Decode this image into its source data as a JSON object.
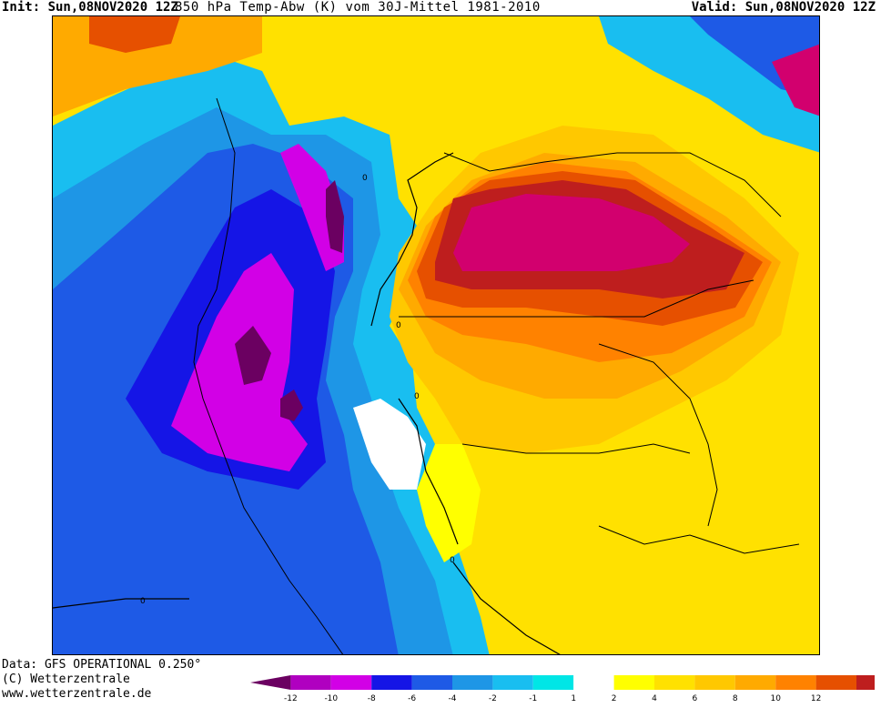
{
  "header": {
    "init": "Init: Sun,08NOV2020 12Z",
    "title": "850 hPa Temp-Abw (K) vom 30J-Mittel 1981-2010",
    "valid": "Valid: Sun,08NOV2020 12Z"
  },
  "footer": {
    "data_source": "Data: GFS OPERATIONAL 0.250°",
    "copyright": "(C) Wetterzentrale",
    "website": "www.wetterzentrale.de"
  },
  "map": {
    "variable": "850 hPa temperature anomaly (K)",
    "region": "North America",
    "contour_labels": [
      "0",
      "0",
      "0",
      "0",
      "0"
    ]
  },
  "colorbar": {
    "tick_labels": [
      "-12",
      "-10",
      "-8",
      "-6",
      "-4",
      "-2",
      "-1",
      "1",
      "2",
      "4",
      "6",
      "8",
      "10",
      "12"
    ],
    "colors": [
      "#6b0061",
      "#b000c0",
      "#d200e6",
      "#1515e6",
      "#1e5ae6",
      "#1e96e6",
      "#19bef0",
      "#00e6e6",
      "#ffffff",
      "#ffff00",
      "#ffe100",
      "#ffc800",
      "#ffaa00",
      "#ff8200",
      "#e65000",
      "#be1e1e",
      "#d2006e"
    ]
  }
}
